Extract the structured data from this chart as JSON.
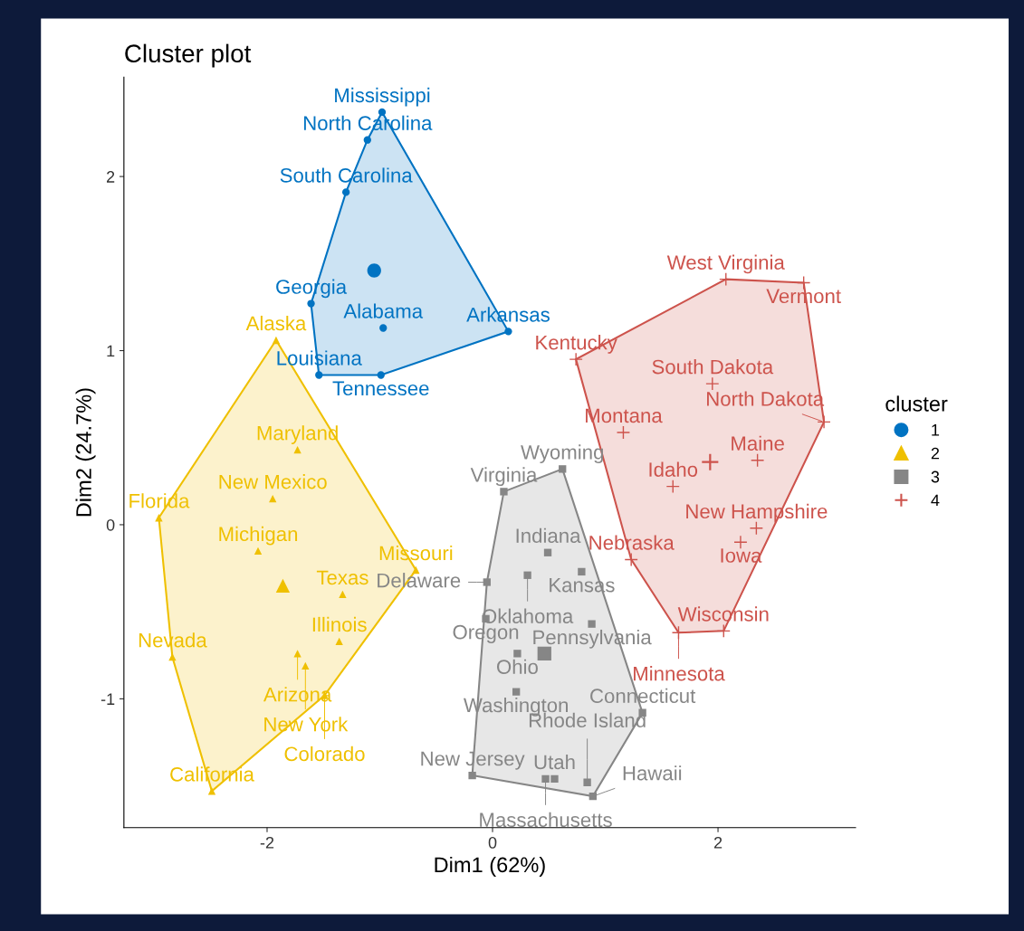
{
  "chart_data": {
    "type": "scatter",
    "title": "Cluster plot",
    "xlabel": "Dim1 (62%)",
    "ylabel": "Dim2 (24.7%)",
    "legend_title": "cluster",
    "legend": "right",
    "grid": false,
    "xlim": [
      -3.27,
      3.22
    ],
    "ylim": [
      -1.74,
      2.57
    ],
    "xticks": [
      -2,
      0,
      2
    ],
    "yticks": [
      -1,
      0,
      1,
      2
    ],
    "series": [
      {
        "name": "1",
        "color": "#0073c2",
        "marker": "circle",
        "x": [
          -0.98,
          -1.11,
          -1.3,
          -1.61,
          0.14,
          -0.97,
          -1.54,
          -0.99
        ],
        "values": [
          2.37,
          2.21,
          1.91,
          1.27,
          1.11,
          1.13,
          0.86,
          0.86
        ]
      },
      {
        "name": "2",
        "color": "#efc000",
        "marker": "triangle",
        "x": [
          -1.92,
          -1.73,
          -1.95,
          -2.96,
          -2.08,
          -0.68,
          -1.33,
          -1.36,
          -1.73,
          -2.84,
          -1.66,
          -1.49,
          -2.49
        ],
        "values": [
          1.06,
          0.43,
          0.15,
          0.04,
          -0.15,
          -0.26,
          -0.4,
          -0.67,
          -0.74,
          -0.76,
          -0.81,
          -0.98,
          -1.53
        ]
      },
      {
        "name": "3",
        "color": "#868686",
        "marker": "square",
        "x": [
          0.62,
          0.1,
          0.49,
          0.79,
          0.31,
          -0.05,
          -0.06,
          0.88,
          0.22,
          0.21,
          1.33,
          -0.18,
          0.55,
          0.47,
          0.84,
          0.89
        ],
        "values": [
          0.32,
          0.19,
          -0.16,
          -0.27,
          -0.29,
          -0.33,
          -0.54,
          -0.57,
          -0.74,
          -0.96,
          -1.08,
          -1.44,
          -1.46,
          -1.46,
          -1.48,
          -1.56
        ]
      },
      {
        "name": "4",
        "color": "#cd534c",
        "marker": "cross",
        "x": [
          2.07,
          2.76,
          0.74,
          1.95,
          2.94,
          1.16,
          2.35,
          1.6,
          2.34,
          2.2,
          1.23,
          2.05,
          1.65
        ],
        "values": [
          1.41,
          1.39,
          0.95,
          0.81,
          0.59,
          0.53,
          0.37,
          0.22,
          -0.02,
          -0.1,
          -0.2,
          -0.61,
          -0.62
        ]
      },
      {
        "color": "#0073c2",
        "marker": "circle",
        "x": [
          -1.05
        ],
        "values": [
          1.46
        ]
      },
      {
        "color": "#efc000",
        "marker": "triangle",
        "x": [
          -1.86
        ],
        "values": [
          -0.35
        ]
      },
      {
        "color": "#868686",
        "marker": "square",
        "x": [
          0.46
        ],
        "values": [
          -0.74
        ]
      },
      {
        "color": "#cd534c",
        "marker": "cross",
        "x": [
          1.93
        ],
        "values": [
          0.36
        ]
      }
    ],
    "annotations": [
      {
        "text": "Mississippi",
        "x": -0.98,
        "y": 2.37
      },
      {
        "text": "North Carolina",
        "x": -1.11,
        "y": 2.21
      },
      {
        "text": "South Carolina",
        "x": -1.3,
        "y": 1.91
      },
      {
        "text": "Georgia",
        "x": -1.61,
        "y": 1.27
      },
      {
        "text": "Arkansas",
        "x": 0.14,
        "y": 1.11
      },
      {
        "text": "Alabama",
        "x": -0.97,
        "y": 1.13
      },
      {
        "text": "Louisiana",
        "x": -1.54,
        "y": 0.86
      },
      {
        "text": "Tennessee",
        "x": -0.99,
        "y": 0.86
      },
      {
        "text": "Alaska",
        "x": -1.92,
        "y": 1.06
      },
      {
        "text": "Maryland",
        "x": -1.73,
        "y": 0.43
      },
      {
        "text": "New Mexico",
        "x": -1.95,
        "y": 0.15
      },
      {
        "text": "Florida",
        "x": -2.96,
        "y": 0.04
      },
      {
        "text": "Michigan",
        "x": -2.08,
        "y": -0.15
      },
      {
        "text": "Missouri",
        "x": -0.68,
        "y": -0.26
      },
      {
        "text": "Texas",
        "x": -1.33,
        "y": -0.4
      },
      {
        "text": "Illinois",
        "x": -1.36,
        "y": -0.67
      },
      {
        "text": "Arizona",
        "x": -1.73,
        "y": -0.74
      },
      {
        "text": "Nevada",
        "x": -2.84,
        "y": -0.76
      },
      {
        "text": "New York",
        "x": -1.66,
        "y": -0.81
      },
      {
        "text": "Colorado",
        "x": -1.49,
        "y": -0.98
      },
      {
        "text": "California",
        "x": -2.49,
        "y": -1.53
      },
      {
        "text": "Wyoming",
        "x": 0.62,
        "y": 0.32
      },
      {
        "text": "Virginia",
        "x": 0.1,
        "y": 0.19
      },
      {
        "text": "Indiana",
        "x": 0.49,
        "y": -0.16
      },
      {
        "text": "Kansas",
        "x": 0.79,
        "y": -0.27
      },
      {
        "text": "Oklahoma",
        "x": 0.31,
        "y": -0.29
      },
      {
        "text": "Delaware",
        "x": -0.05,
        "y": -0.33
      },
      {
        "text": "Oregon",
        "x": -0.06,
        "y": -0.54
      },
      {
        "text": "Pennsylvania",
        "x": 0.88,
        "y": -0.57
      },
      {
        "text": "Ohio",
        "x": 0.22,
        "y": -0.74
      },
      {
        "text": "Washington",
        "x": 0.21,
        "y": -0.96
      },
      {
        "text": "Connecticut",
        "x": 1.33,
        "y": -1.08
      },
      {
        "text": "New Jersey",
        "x": -0.18,
        "y": -1.44
      },
      {
        "text": "Utah",
        "x": 0.55,
        "y": -1.46
      },
      {
        "text": "Massachusetts",
        "x": 0.47,
        "y": -1.46
      },
      {
        "text": "Rhode Island",
        "x": 0.84,
        "y": -1.48
      },
      {
        "text": "Hawaii",
        "x": 0.89,
        "y": -1.56
      },
      {
        "text": "West Virginia",
        "x": 2.07,
        "y": 1.41
      },
      {
        "text": "Vermont",
        "x": 2.76,
        "y": 1.39
      },
      {
        "text": "Kentucky",
        "x": 0.74,
        "y": 0.95
      },
      {
        "text": "South Dakota",
        "x": 1.95,
        "y": 0.81
      },
      {
        "text": "North Dakota",
        "x": 2.94,
        "y": 0.59
      },
      {
        "text": "Montana",
        "x": 1.16,
        "y": 0.53
      },
      {
        "text": "Maine",
        "x": 2.35,
        "y": 0.37
      },
      {
        "text": "Idaho",
        "x": 1.6,
        "y": 0.22
      },
      {
        "text": "New Hampshire",
        "x": 2.34,
        "y": -0.02
      },
      {
        "text": "Iowa",
        "x": 2.2,
        "y": -0.1
      },
      {
        "text": "Nebraska",
        "x": 1.23,
        "y": -0.2
      },
      {
        "text": "Wisconsin",
        "x": 2.05,
        "y": -0.61
      },
      {
        "text": "Minnesota",
        "x": 1.65,
        "y": -0.62
      }
    ]
  }
}
